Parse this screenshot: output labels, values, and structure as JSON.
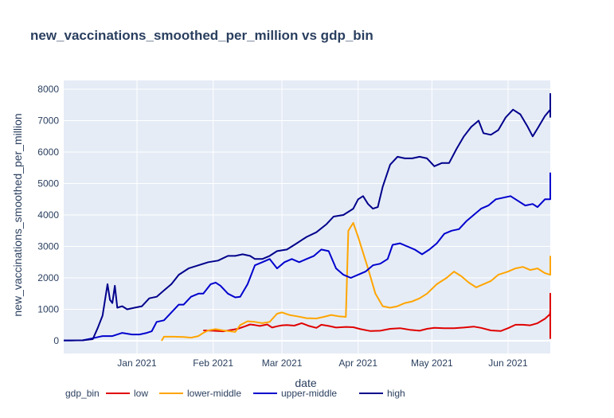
{
  "chart_data": {
    "type": "line",
    "title": "new_vaccinations_smoothed_per_million vs gdp_bin",
    "xlabel": "date",
    "ylabel": "new_vaccinations_smoothed_per_million",
    "x_ticks": [
      "Jan 2021",
      "Feb 2021",
      "Mar 2021",
      "Apr 2021",
      "May 2021",
      "Jun 2021"
    ],
    "y_ticks": [
      0,
      1000,
      2000,
      3000,
      4000,
      5000,
      6000,
      7000,
      8000
    ],
    "xlim": [
      "2020-12-01",
      "2021-06-21"
    ],
    "ylim": [
      -400,
      8400
    ],
    "grid": true,
    "legend": {
      "title": "gdp_bin",
      "position": "bottom"
    },
    "series": [
      {
        "name": "low",
        "color": "#e00000",
        "points": [
          [
            "2021-01-28",
            330
          ],
          [
            "2021-02-01",
            320
          ],
          [
            "2021-02-05",
            300
          ],
          [
            "2021-02-08",
            340
          ],
          [
            "2021-02-11",
            380
          ],
          [
            "2021-02-14",
            460
          ],
          [
            "2021-02-16",
            520
          ],
          [
            "2021-02-18",
            500
          ],
          [
            "2021-02-20",
            470
          ],
          [
            "2021-02-23",
            520
          ],
          [
            "2021-02-25",
            420
          ],
          [
            "2021-02-27",
            460
          ],
          [
            "2021-03-01",
            490
          ],
          [
            "2021-03-03",
            500
          ],
          [
            "2021-03-06",
            480
          ],
          [
            "2021-03-09",
            560
          ],
          [
            "2021-03-12",
            470
          ],
          [
            "2021-03-15",
            410
          ],
          [
            "2021-03-17",
            510
          ],
          [
            "2021-03-20",
            470
          ],
          [
            "2021-03-23",
            420
          ],
          [
            "2021-03-27",
            440
          ],
          [
            "2021-03-30",
            430
          ],
          [
            "2021-04-02",
            370
          ],
          [
            "2021-04-06",
            310
          ],
          [
            "2021-04-10",
            320
          ],
          [
            "2021-04-14",
            380
          ],
          [
            "2021-04-18",
            400
          ],
          [
            "2021-04-22",
            350
          ],
          [
            "2021-04-26",
            320
          ],
          [
            "2021-04-29",
            380
          ],
          [
            "2021-05-02",
            410
          ],
          [
            "2021-05-06",
            400
          ],
          [
            "2021-05-10",
            400
          ],
          [
            "2021-05-14",
            420
          ],
          [
            "2021-05-18",
            450
          ],
          [
            "2021-05-21",
            410
          ],
          [
            "2021-05-25",
            330
          ],
          [
            "2021-05-29",
            310
          ],
          [
            "2021-06-01",
            400
          ],
          [
            "2021-06-04",
            510
          ],
          [
            "2021-06-07",
            510
          ],
          [
            "2021-06-10",
            490
          ],
          [
            "2021-06-13",
            560
          ],
          [
            "2021-06-16",
            700
          ],
          [
            "2021-06-18",
            840
          ],
          [
            "2021-06-20",
            980
          ],
          [
            "2021-06-21",
            1500
          ],
          [
            "2021-06-22",
            1200
          ],
          [
            "2021-06-23",
            60
          ],
          [
            "2021-06-24",
            60
          ]
        ]
      },
      {
        "name": "lower-middle",
        "color": "#ffa500",
        "points": [
          [
            "2021-01-11",
            0
          ],
          [
            "2021-01-12",
            130
          ],
          [
            "2021-01-16",
            130
          ],
          [
            "2021-01-20",
            120
          ],
          [
            "2021-01-23",
            100
          ],
          [
            "2021-01-26",
            150
          ],
          [
            "2021-01-28",
            250
          ],
          [
            "2021-01-30",
            330
          ],
          [
            "2021-02-02",
            370
          ],
          [
            "2021-02-05",
            330
          ],
          [
            "2021-02-08",
            300
          ],
          [
            "2021-02-10",
            280
          ],
          [
            "2021-02-12",
            500
          ],
          [
            "2021-02-15",
            620
          ],
          [
            "2021-02-18",
            600
          ],
          [
            "2021-02-21",
            560
          ],
          [
            "2021-02-24",
            600
          ],
          [
            "2021-02-27",
            860
          ],
          [
            "2021-03-01",
            900
          ],
          [
            "2021-03-04",
            820
          ],
          [
            "2021-03-07",
            780
          ],
          [
            "2021-03-11",
            720
          ],
          [
            "2021-03-15",
            710
          ],
          [
            "2021-03-18",
            760
          ],
          [
            "2021-03-21",
            820
          ],
          [
            "2021-03-24",
            780
          ],
          [
            "2021-03-27",
            760
          ],
          [
            "2021-03-28",
            3500
          ],
          [
            "2021-03-30",
            3750
          ],
          [
            "2021-04-01",
            3300
          ],
          [
            "2021-04-05",
            2300
          ],
          [
            "2021-04-08",
            1500
          ],
          [
            "2021-04-11",
            1100
          ],
          [
            "2021-04-14",
            1050
          ],
          [
            "2021-04-17",
            1100
          ],
          [
            "2021-04-20",
            1200
          ],
          [
            "2021-04-23",
            1250
          ],
          [
            "2021-04-26",
            1350
          ],
          [
            "2021-04-29",
            1500
          ],
          [
            "2021-05-03",
            1800
          ],
          [
            "2021-05-07",
            2000
          ],
          [
            "2021-05-10",
            2200
          ],
          [
            "2021-05-13",
            2050
          ],
          [
            "2021-05-16",
            1850
          ],
          [
            "2021-05-19",
            1700
          ],
          [
            "2021-05-22",
            1800
          ],
          [
            "2021-05-25",
            1900
          ],
          [
            "2021-05-28",
            2100
          ],
          [
            "2021-06-01",
            2200
          ],
          [
            "2021-06-04",
            2300
          ],
          [
            "2021-06-07",
            2350
          ],
          [
            "2021-06-10",
            2250
          ],
          [
            "2021-06-13",
            2300
          ],
          [
            "2021-06-16",
            2150
          ],
          [
            "2021-06-19",
            2100
          ],
          [
            "2021-06-21",
            2200
          ],
          [
            "2021-06-23",
            2300
          ],
          [
            "2021-06-24",
            2700
          ]
        ]
      },
      {
        "name": "upper-middle",
        "color": "#0000cd",
        "points": [
          [
            "2020-12-01",
            10
          ],
          [
            "2020-12-05",
            10
          ],
          [
            "2020-12-10",
            15
          ],
          [
            "2020-12-14",
            80
          ],
          [
            "2020-12-18",
            150
          ],
          [
            "2020-12-22",
            150
          ],
          [
            "2020-12-26",
            250
          ],
          [
            "2020-12-30",
            200
          ],
          [
            "2021-01-02",
            200
          ],
          [
            "2021-01-05",
            250
          ],
          [
            "2021-01-07",
            300
          ],
          [
            "2021-01-09",
            600
          ],
          [
            "2021-01-12",
            650
          ],
          [
            "2021-01-15",
            900
          ],
          [
            "2021-01-18",
            1150
          ],
          [
            "2021-01-20",
            1150
          ],
          [
            "2021-01-23",
            1400
          ],
          [
            "2021-01-26",
            1500
          ],
          [
            "2021-01-28",
            1500
          ],
          [
            "2021-01-31",
            1800
          ],
          [
            "2021-02-02",
            1850
          ],
          [
            "2021-02-04",
            1750
          ],
          [
            "2021-02-07",
            1500
          ],
          [
            "2021-02-10",
            1380
          ],
          [
            "2021-02-12",
            1400
          ],
          [
            "2021-02-15",
            1800
          ],
          [
            "2021-02-18",
            2400
          ],
          [
            "2021-02-21",
            2500
          ],
          [
            "2021-02-24",
            2600
          ],
          [
            "2021-02-27",
            2300
          ],
          [
            "2021-03-02",
            2500
          ],
          [
            "2021-03-05",
            2600
          ],
          [
            "2021-03-08",
            2500
          ],
          [
            "2021-03-11",
            2600
          ],
          [
            "2021-03-14",
            2700
          ],
          [
            "2021-03-17",
            2900
          ],
          [
            "2021-03-20",
            2850
          ],
          [
            "2021-03-23",
            2300
          ],
          [
            "2021-03-26",
            2100
          ],
          [
            "2021-03-29",
            2000
          ],
          [
            "2021-04-01",
            2100
          ],
          [
            "2021-04-04",
            2200
          ],
          [
            "2021-04-07",
            2400
          ],
          [
            "2021-04-10",
            2450
          ],
          [
            "2021-04-13",
            2600
          ],
          [
            "2021-04-15",
            3050
          ],
          [
            "2021-04-18",
            3100
          ],
          [
            "2021-04-21",
            3000
          ],
          [
            "2021-04-24",
            2900
          ],
          [
            "2021-04-27",
            2750
          ],
          [
            "2021-04-30",
            2900
          ],
          [
            "2021-05-03",
            3100
          ],
          [
            "2021-05-06",
            3400
          ],
          [
            "2021-05-09",
            3500
          ],
          [
            "2021-05-12",
            3550
          ],
          [
            "2021-05-15",
            3800
          ],
          [
            "2021-05-18",
            4000
          ],
          [
            "2021-05-21",
            4200
          ],
          [
            "2021-05-24",
            4300
          ],
          [
            "2021-05-27",
            4500
          ],
          [
            "2021-05-30",
            4550
          ],
          [
            "2021-06-02",
            4600
          ],
          [
            "2021-06-05",
            4450
          ],
          [
            "2021-06-08",
            4300
          ],
          [
            "2021-06-11",
            4350
          ],
          [
            "2021-06-13",
            4250
          ],
          [
            "2021-06-16",
            4500
          ],
          [
            "2021-06-19",
            4500
          ],
          [
            "2021-06-21",
            4750
          ],
          [
            "2021-06-23",
            5100
          ],
          [
            "2021-06-24",
            5350
          ]
        ]
      },
      {
        "name": "high",
        "color": "#00008b",
        "points": [
          [
            "2020-12-01",
            10
          ],
          [
            "2020-12-05",
            10
          ],
          [
            "2020-12-10",
            15
          ],
          [
            "2020-12-14",
            50
          ],
          [
            "2020-12-16",
            400
          ],
          [
            "2020-12-18",
            800
          ],
          [
            "2020-12-20",
            1800
          ],
          [
            "2020-12-21",
            1300
          ],
          [
            "2020-12-22",
            1200
          ],
          [
            "2020-12-23",
            1750
          ],
          [
            "2020-12-24",
            1050
          ],
          [
            "2020-12-26",
            1100
          ],
          [
            "2020-12-28",
            1000
          ],
          [
            "2020-12-31",
            1050
          ],
          [
            "2021-01-03",
            1100
          ],
          [
            "2021-01-06",
            1350
          ],
          [
            "2021-01-09",
            1400
          ],
          [
            "2021-01-12",
            1600
          ],
          [
            "2021-01-15",
            1800
          ],
          [
            "2021-01-18",
            2100
          ],
          [
            "2021-01-22",
            2300
          ],
          [
            "2021-01-26",
            2400
          ],
          [
            "2021-01-30",
            2500
          ],
          [
            "2021-02-03",
            2550
          ],
          [
            "2021-02-07",
            2700
          ],
          [
            "2021-02-10",
            2700
          ],
          [
            "2021-02-13",
            2750
          ],
          [
            "2021-02-16",
            2700
          ],
          [
            "2021-02-18",
            2600
          ],
          [
            "2021-02-21",
            2600
          ],
          [
            "2021-02-24",
            2700
          ],
          [
            "2021-02-27",
            2850
          ],
          [
            "2021-03-03",
            2900
          ],
          [
            "2021-03-07",
            3100
          ],
          [
            "2021-03-11",
            3300
          ],
          [
            "2021-03-15",
            3450
          ],
          [
            "2021-03-19",
            3700
          ],
          [
            "2021-03-22",
            3950
          ],
          [
            "2021-03-26",
            4000
          ],
          [
            "2021-03-30",
            4200
          ],
          [
            "2021-04-01",
            4500
          ],
          [
            "2021-04-03",
            4600
          ],
          [
            "2021-04-05",
            4350
          ],
          [
            "2021-04-07",
            4200
          ],
          [
            "2021-04-09",
            4250
          ],
          [
            "2021-04-11",
            4900
          ],
          [
            "2021-04-14",
            5600
          ],
          [
            "2021-04-17",
            5850
          ],
          [
            "2021-04-20",
            5800
          ],
          [
            "2021-04-23",
            5800
          ],
          [
            "2021-04-26",
            5850
          ],
          [
            "2021-04-29",
            5800
          ],
          [
            "2021-05-02",
            5550
          ],
          [
            "2021-05-05",
            5650
          ],
          [
            "2021-05-08",
            5650
          ],
          [
            "2021-05-11",
            6100
          ],
          [
            "2021-05-14",
            6500
          ],
          [
            "2021-05-17",
            6800
          ],
          [
            "2021-05-20",
            7000
          ],
          [
            "2021-05-22",
            6600
          ],
          [
            "2021-05-25",
            6550
          ],
          [
            "2021-05-28",
            6700
          ],
          [
            "2021-05-31",
            7100
          ],
          [
            "2021-06-03",
            7350
          ],
          [
            "2021-06-06",
            7200
          ],
          [
            "2021-06-09",
            6800
          ],
          [
            "2021-06-11",
            6500
          ],
          [
            "2021-06-13",
            6750
          ],
          [
            "2021-06-16",
            7150
          ],
          [
            "2021-06-19",
            7350
          ],
          [
            "2021-06-22",
            7400
          ],
          [
            "2021-06-24",
            7300
          ],
          [
            "2021-06-26",
            7700
          ],
          [
            "2021-06-28",
            7650
          ],
          [
            "2021-06-30",
            7850
          ],
          [
            "2021-07-01",
            7100
          ]
        ]
      }
    ]
  }
}
